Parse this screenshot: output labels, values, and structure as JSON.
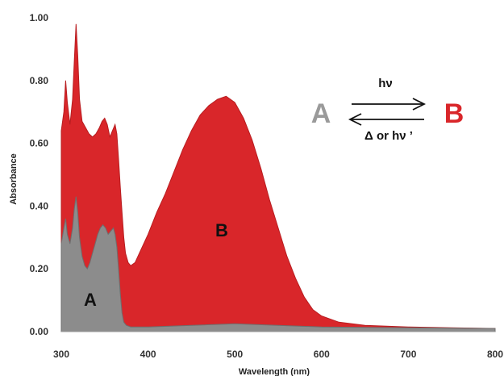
{
  "chart_data": {
    "type": "area",
    "xlabel": "Wavelength (nm)",
    "ylabel": "Absorbance",
    "xlim": [
      300,
      800
    ],
    "ylim": [
      0,
      1.0
    ],
    "x_ticks": [
      "300",
      "400",
      "500",
      "600",
      "700",
      "800"
    ],
    "y_ticks": [
      "0.00",
      "0.20",
      "0.40",
      "0.60",
      "0.80",
      "1.00"
    ],
    "grid": false,
    "colors": {
      "A": "#8c8c8c",
      "B": "#d9262a"
    },
    "series": [
      {
        "name": "B",
        "label": "B",
        "points": [
          [
            300,
            0.64
          ],
          [
            303,
            0.7
          ],
          [
            305,
            0.8
          ],
          [
            307,
            0.73
          ],
          [
            310,
            0.66
          ],
          [
            313,
            0.74
          ],
          [
            315,
            0.86
          ],
          [
            317,
            0.98
          ],
          [
            319,
            0.88
          ],
          [
            321,
            0.74
          ],
          [
            324,
            0.67
          ],
          [
            328,
            0.65
          ],
          [
            332,
            0.63
          ],
          [
            336,
            0.62
          ],
          [
            340,
            0.63
          ],
          [
            344,
            0.65
          ],
          [
            347,
            0.67
          ],
          [
            350,
            0.68
          ],
          [
            353,
            0.66
          ],
          [
            356,
            0.62
          ],
          [
            359,
            0.64
          ],
          [
            362,
            0.66
          ],
          [
            364,
            0.63
          ],
          [
            366,
            0.55
          ],
          [
            368,
            0.46
          ],
          [
            370,
            0.38
          ],
          [
            372,
            0.3
          ],
          [
            374,
            0.25
          ],
          [
            377,
            0.22
          ],
          [
            380,
            0.21
          ],
          [
            385,
            0.22
          ],
          [
            390,
            0.25
          ],
          [
            400,
            0.31
          ],
          [
            410,
            0.38
          ],
          [
            420,
            0.44
          ],
          [
            430,
            0.51
          ],
          [
            440,
            0.58
          ],
          [
            450,
            0.64
          ],
          [
            460,
            0.69
          ],
          [
            470,
            0.72
          ],
          [
            480,
            0.74
          ],
          [
            490,
            0.75
          ],
          [
            500,
            0.73
          ],
          [
            510,
            0.68
          ],
          [
            520,
            0.61
          ],
          [
            530,
            0.52
          ],
          [
            540,
            0.42
          ],
          [
            550,
            0.33
          ],
          [
            560,
            0.24
          ],
          [
            570,
            0.17
          ],
          [
            580,
            0.11
          ],
          [
            590,
            0.07
          ],
          [
            600,
            0.05
          ],
          [
            620,
            0.03
          ],
          [
            650,
            0.02
          ],
          [
            700,
            0.015
          ],
          [
            750,
            0.012
          ],
          [
            800,
            0.01
          ]
        ]
      },
      {
        "name": "A",
        "label": "A",
        "points": [
          [
            300,
            0.28
          ],
          [
            303,
            0.33
          ],
          [
            305,
            0.36
          ],
          [
            307,
            0.31
          ],
          [
            310,
            0.28
          ],
          [
            313,
            0.33
          ],
          [
            315,
            0.39
          ],
          [
            317,
            0.43
          ],
          [
            319,
            0.38
          ],
          [
            321,
            0.3
          ],
          [
            324,
            0.24
          ],
          [
            327,
            0.21
          ],
          [
            330,
            0.2
          ],
          [
            333,
            0.22
          ],
          [
            336,
            0.25
          ],
          [
            339,
            0.28
          ],
          [
            342,
            0.31
          ],
          [
            345,
            0.33
          ],
          [
            348,
            0.34
          ],
          [
            351,
            0.33
          ],
          [
            354,
            0.31
          ],
          [
            357,
            0.32
          ],
          [
            360,
            0.33
          ],
          [
            362,
            0.31
          ],
          [
            364,
            0.27
          ],
          [
            366,
            0.2
          ],
          [
            368,
            0.12
          ],
          [
            370,
            0.06
          ],
          [
            372,
            0.03
          ],
          [
            375,
            0.02
          ],
          [
            380,
            0.015
          ],
          [
            400,
            0.015
          ],
          [
            450,
            0.02
          ],
          [
            500,
            0.025
          ],
          [
            550,
            0.02
          ],
          [
            600,
            0.015
          ],
          [
            700,
            0.012
          ],
          [
            800,
            0.01
          ]
        ]
      }
    ]
  },
  "scheme": {
    "from": "A",
    "to": "B",
    "forward": "hν",
    "reverse": "Δ or hν ’"
  }
}
